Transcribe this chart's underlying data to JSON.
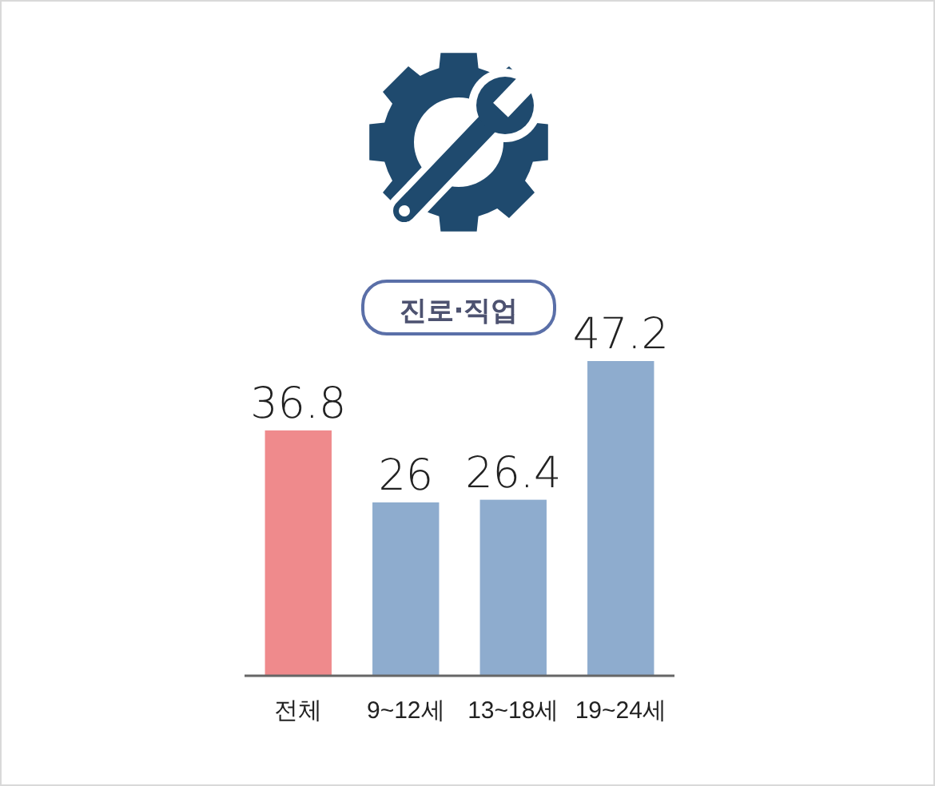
{
  "chart_data": {
    "type": "bar",
    "title": "진로·직업",
    "categories": [
      "전체",
      "9~12세",
      "13~18세",
      "19~24세"
    ],
    "values": [
      36.8,
      26,
      26.4,
      47.2
    ],
    "colors": [
      "#ef8a8c",
      "#8eacce",
      "#8eacce",
      "#8eacce"
    ],
    "data_labels": true
  }
}
